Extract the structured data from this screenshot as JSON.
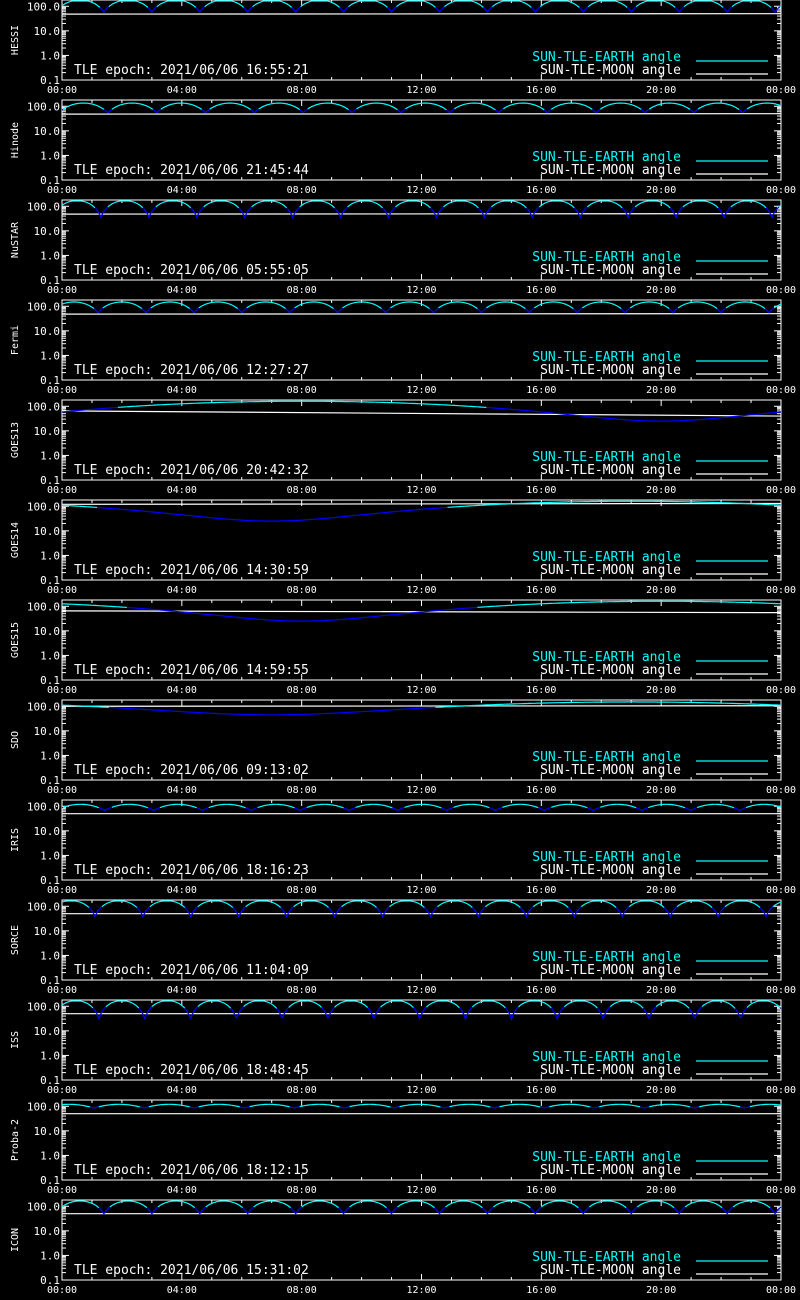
{
  "colors": {
    "background": "#000000",
    "axes": "#ffffff",
    "earth": "#00ffff",
    "earth_shaded": "#0000ff",
    "moon": "#ffffff"
  },
  "legend_earth": "SUN-TLE-EARTH angle",
  "legend_moon": "SUN-TLE-MOON angle",
  "xtick_labels": [
    "00:00",
    "04:00",
    "08:00",
    "12:00",
    "16:00",
    "20:00",
    "00:00"
  ],
  "ytick_labels": [
    "0.1",
    "1.0",
    "10.0",
    "100.0"
  ],
  "chart_data": [
    {
      "type": "line",
      "satellite": "HESSI",
      "epoch_label": "TLE epoch: 2021/06/06 16:55:21",
      "x_hours": [
        0,
        24
      ],
      "ylim": [
        0.1,
        180
      ],
      "yscale": "log",
      "series": [
        {
          "name": "SUN-TLE-EARTH angle",
          "shape": "periodic",
          "period_h": 1.6,
          "phase_h": 0.2,
          "max": 180,
          "min": 58,
          "shadow_below": 90
        },
        {
          "name": "SUN-TLE-MOON angle",
          "shape": "linear",
          "start": 48,
          "end": 50
        }
      ]
    },
    {
      "type": "line",
      "satellite": "Hinode",
      "epoch_label": "TLE epoch: 2021/06/06 21:45:44",
      "x_hours": [
        0,
        24
      ],
      "ylim": [
        0.1,
        180
      ],
      "yscale": "log",
      "series": [
        {
          "name": "SUN-TLE-EARTH angle",
          "shape": "periodic",
          "period_h": 1.63,
          "phase_h": 0.1,
          "max": 135,
          "min": 55,
          "shadow_below": 75
        },
        {
          "name": "SUN-TLE-MOON angle",
          "shape": "linear",
          "start": 48,
          "end": 50
        }
      ]
    },
    {
      "type": "line",
      "satellite": "NuSTAR",
      "epoch_label": "TLE epoch: 2021/06/06 05:55:05",
      "x_hours": [
        0,
        24
      ],
      "ylim": [
        0.1,
        180
      ],
      "yscale": "log",
      "series": [
        {
          "name": "SUN-TLE-EARTH angle",
          "shape": "periodic",
          "period_h": 1.6,
          "phase_h": 0.3,
          "max": 170,
          "min": 35,
          "shadow_below": 90
        },
        {
          "name": "SUN-TLE-MOON angle",
          "shape": "linear",
          "start": 48,
          "end": 50
        }
      ]
    },
    {
      "type": "line",
      "satellite": "Fermi",
      "epoch_label": "TLE epoch: 2021/06/06 12:27:27",
      "x_hours": [
        0,
        24
      ],
      "ylim": [
        0.1,
        180
      ],
      "yscale": "log",
      "series": [
        {
          "name": "SUN-TLE-EARTH angle",
          "shape": "periodic",
          "period_h": 1.6,
          "phase_h": 0.4,
          "max": 150,
          "min": 55,
          "shadow_below": 80
        },
        {
          "name": "SUN-TLE-MOON angle",
          "shape": "linear",
          "start": 48,
          "end": 50
        }
      ]
    },
    {
      "type": "line",
      "satellite": "GOES13",
      "epoch_label": "TLE epoch: 2021/06/06 20:42:32",
      "x_hours": [
        0,
        24
      ],
      "ylim": [
        0.1,
        180
      ],
      "yscale": "log",
      "series": [
        {
          "name": "SUN-TLE-EARTH angle",
          "shape": "daily",
          "peak_h": 8,
          "max": 160,
          "min": 25,
          "shadow_below": 90
        },
        {
          "name": "SUN-TLE-MOON angle",
          "shape": "linear",
          "start": 65,
          "end": 40
        }
      ]
    },
    {
      "type": "line",
      "satellite": "GOES14",
      "epoch_label": "TLE epoch: 2021/06/06 14:30:59",
      "x_hours": [
        0,
        24
      ],
      "ylim": [
        0.1,
        180
      ],
      "yscale": "log",
      "series": [
        {
          "name": "SUN-TLE-EARTH angle",
          "shape": "daily",
          "peak_h": 19,
          "max": 160,
          "min": 25,
          "shadow_below": 90
        },
        {
          "name": "SUN-TLE-MOON angle",
          "shape": "linear",
          "start": 120,
          "end": 130
        }
      ]
    },
    {
      "type": "line",
      "satellite": "GOES15",
      "epoch_label": "TLE epoch: 2021/06/06 14:59:55",
      "x_hours": [
        0,
        24
      ],
      "ylim": [
        0.1,
        180
      ],
      "yscale": "log",
      "series": [
        {
          "name": "SUN-TLE-EARTH angle",
          "shape": "daily",
          "peak_h": 20,
          "max": 160,
          "min": 25,
          "shadow_below": 90
        },
        {
          "name": "SUN-TLE-MOON angle",
          "shape": "linear",
          "start": 65,
          "end": 55
        }
      ]
    },
    {
      "type": "line",
      "satellite": "SDO",
      "epoch_label": "TLE epoch: 2021/06/06 09:13:02",
      "x_hours": [
        0,
        24
      ],
      "ylim": [
        0.1,
        180
      ],
      "yscale": "log",
      "series": [
        {
          "name": "SUN-TLE-EARTH angle",
          "shape": "daily",
          "peak_h": 19,
          "max": 150,
          "min": 45,
          "shadow_below": 90
        },
        {
          "name": "SUN-TLE-MOON angle",
          "shape": "linear",
          "start": 100,
          "end": 105
        }
      ]
    },
    {
      "type": "line",
      "satellite": "IRIS",
      "epoch_label": "TLE epoch: 2021/06/06 18:16:23",
      "x_hours": [
        0,
        24
      ],
      "ylim": [
        0.1,
        180
      ],
      "yscale": "log",
      "series": [
        {
          "name": "SUN-TLE-EARTH angle",
          "shape": "periodic",
          "period_h": 1.63,
          "phase_h": 0.2,
          "max": 120,
          "min": 68,
          "shadow_below": 88
        },
        {
          "name": "SUN-TLE-MOON angle",
          "shape": "linear",
          "start": 50,
          "end": 50
        }
      ]
    },
    {
      "type": "line",
      "satellite": "SORCE",
      "epoch_label": "TLE epoch: 2021/06/06 11:04:09",
      "x_hours": [
        0,
        24
      ],
      "ylim": [
        0.1,
        180
      ],
      "yscale": "log",
      "series": [
        {
          "name": "SUN-TLE-EARTH angle",
          "shape": "periodic",
          "period_h": 1.6,
          "phase_h": 0.5,
          "max": 170,
          "min": 38,
          "shadow_below": 90
        },
        {
          "name": "SUN-TLE-MOON angle",
          "shape": "linear",
          "start": 50,
          "end": 50
        }
      ]
    },
    {
      "type": "line",
      "satellite": "ISS",
      "epoch_label": "TLE epoch: 2021/06/06 18:48:45",
      "x_hours": [
        0,
        24
      ],
      "ylim": [
        0.1,
        180
      ],
      "yscale": "log",
      "series": [
        {
          "name": "SUN-TLE-EARTH angle",
          "shape": "periodic",
          "period_h": 1.53,
          "phase_h": 0.3,
          "max": 170,
          "min": 30,
          "shadow_below": 90
        },
        {
          "name": "SUN-TLE-MOON angle",
          "shape": "linear",
          "start": 50,
          "end": 50
        }
      ]
    },
    {
      "type": "line",
      "satellite": "Proba-2",
      "epoch_label": "TLE epoch: 2021/06/06 18:12:15",
      "x_hours": [
        0,
        24
      ],
      "ylim": [
        0.1,
        180
      ],
      "yscale": "log",
      "series": [
        {
          "name": "SUN-TLE-EARTH angle",
          "shape": "periodic",
          "period_h": 1.67,
          "phase_h": 0.6,
          "max": 120,
          "min": 85,
          "shadow_below": 95
        },
        {
          "name": "SUN-TLE-MOON angle",
          "shape": "linear",
          "start": 50,
          "end": 50
        }
      ]
    },
    {
      "type": "line",
      "satellite": "ICON",
      "epoch_label": "TLE epoch: 2021/06/06 15:31:02",
      "x_hours": [
        0,
        24
      ],
      "ylim": [
        0.1,
        180
      ],
      "yscale": "log",
      "series": [
        {
          "name": "SUN-TLE-EARTH angle",
          "shape": "periodic",
          "period_h": 1.6,
          "phase_h": 0.2,
          "max": 165,
          "min": 50,
          "shadow_below": 90
        },
        {
          "name": "SUN-TLE-MOON angle",
          "shape": "linear",
          "start": 50,
          "end": 50
        }
      ]
    }
  ]
}
